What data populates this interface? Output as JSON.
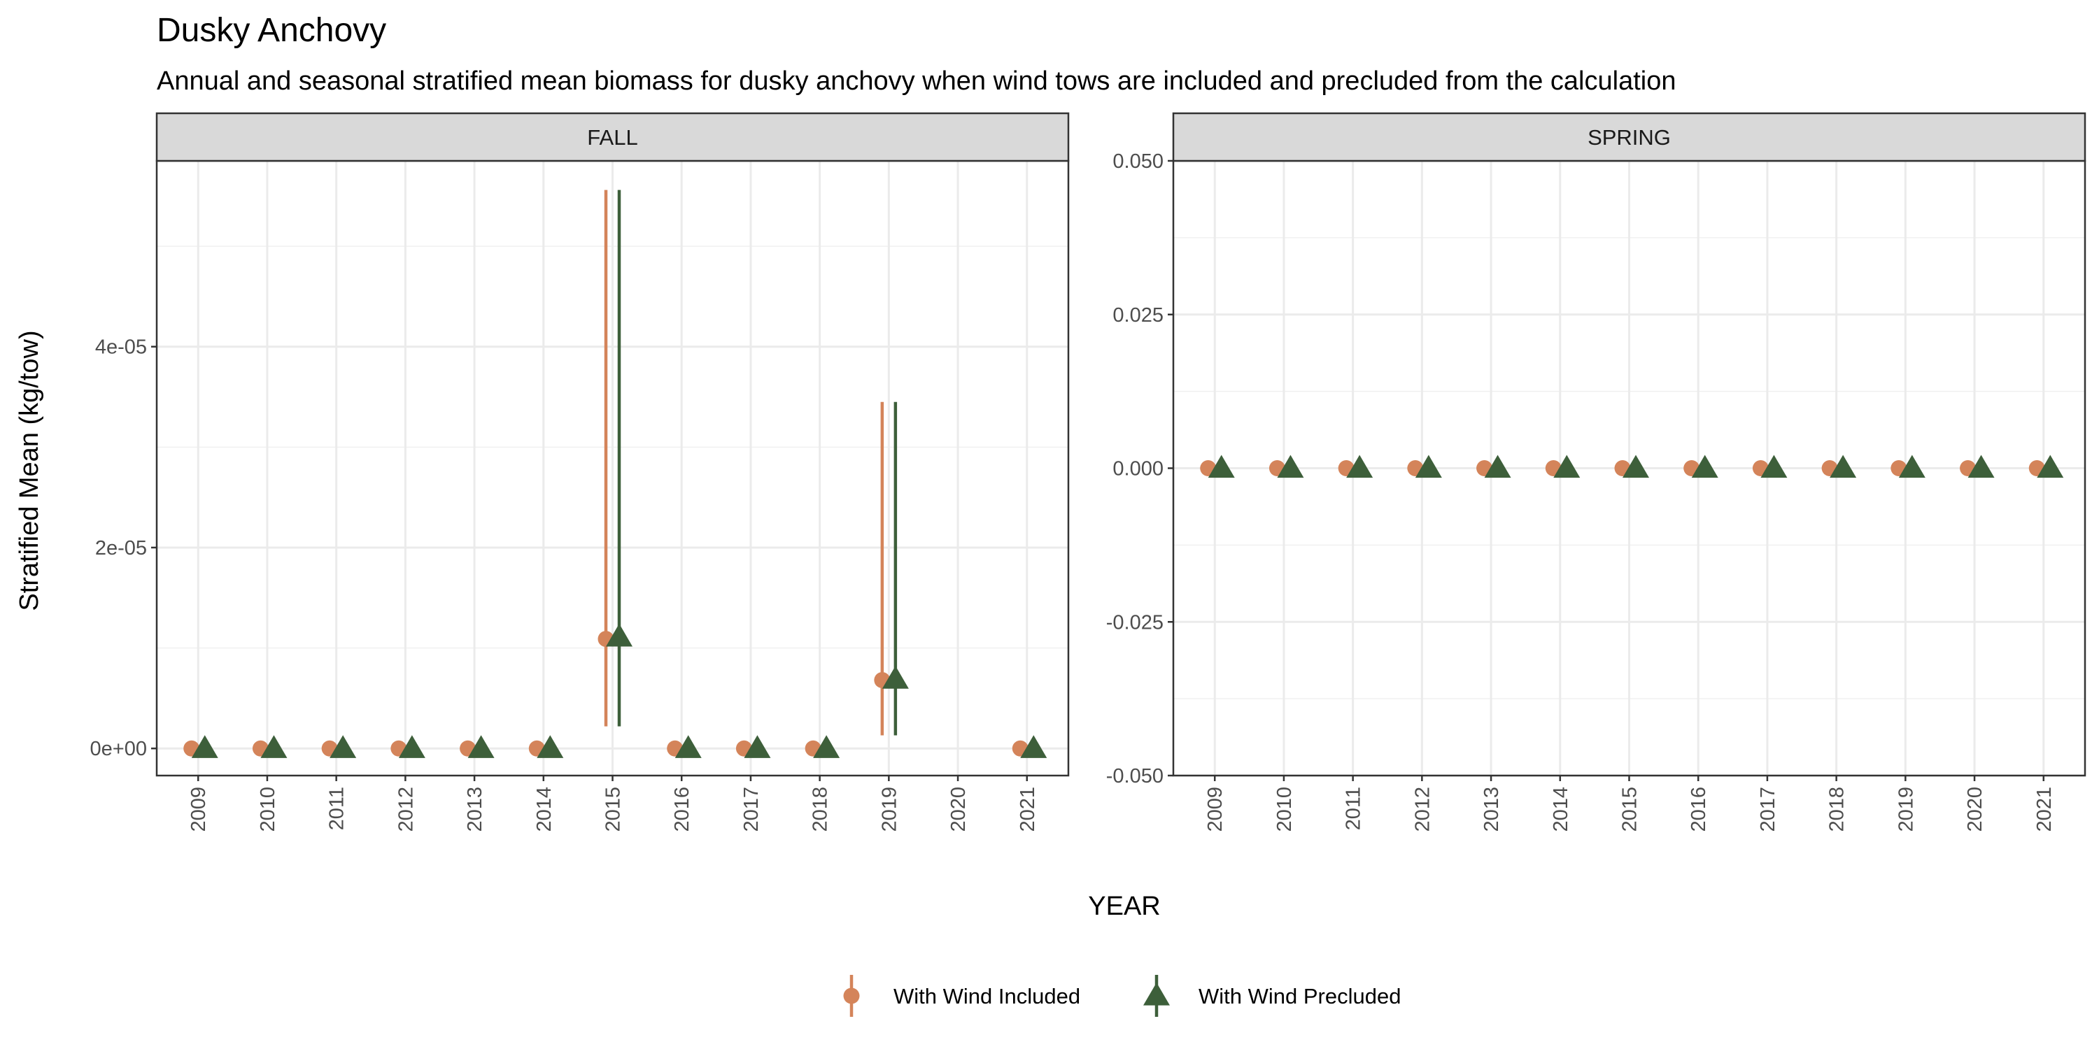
{
  "title": "Dusky Anchovy",
  "subtitle": "Annual and seasonal stratified mean biomass for dusky anchovy when wind tows are included and precluded from the calculation",
  "chart_data": {
    "type": "scatter",
    "xlabel": "YEAR",
    "ylabel": "Stratified Mean (kg/tow)",
    "categories": [
      "2009",
      "2010",
      "2011",
      "2012",
      "2013",
      "2014",
      "2015",
      "2016",
      "2017",
      "2018",
      "2019",
      "2020",
      "2021"
    ],
    "grid": true,
    "legend_position": "bottom",
    "legend": [
      {
        "name": "With Wind Included",
        "color": "#D4845A",
        "marker": "circle"
      },
      {
        "name": "With Wind Precluded",
        "color": "#3D5F3A",
        "marker": "triangle"
      }
    ],
    "panels": [
      {
        "strip": "FALL",
        "ylim": [
          -2.7e-06,
          5.85e-05
        ],
        "yticks": [
          0,
          2e-05,
          4e-05
        ],
        "ytick_labels": [
          "0e+00",
          "2e-05",
          "4e-05"
        ],
        "series": [
          {
            "name": "With Wind Included",
            "points": [
              {
                "x": "2009",
                "y": 0
              },
              {
                "x": "2010",
                "y": 0
              },
              {
                "x": "2011",
                "y": 0
              },
              {
                "x": "2012",
                "y": 0
              },
              {
                "x": "2013",
                "y": 0
              },
              {
                "x": "2014",
                "y": 0
              },
              {
                "x": "2015",
                "y": 1.09e-05,
                "lo": 2.2e-06,
                "hi": 5.56e-05
              },
              {
                "x": "2016",
                "y": 0
              },
              {
                "x": "2017",
                "y": 0
              },
              {
                "x": "2018",
                "y": 0
              },
              {
                "x": "2019",
                "y": 6.8e-06,
                "lo": 1.3e-06,
                "hi": 3.45e-05
              },
              {
                "x": "2021",
                "y": 0
              }
            ]
          },
          {
            "name": "With Wind Precluded",
            "points": [
              {
                "x": "2009",
                "y": 0
              },
              {
                "x": "2010",
                "y": 0
              },
              {
                "x": "2011",
                "y": 0
              },
              {
                "x": "2012",
                "y": 0
              },
              {
                "x": "2013",
                "y": 0
              },
              {
                "x": "2014",
                "y": 0
              },
              {
                "x": "2015",
                "y": 1.11e-05,
                "lo": 2.2e-06,
                "hi": 5.56e-05
              },
              {
                "x": "2016",
                "y": 0
              },
              {
                "x": "2017",
                "y": 0
              },
              {
                "x": "2018",
                "y": 0
              },
              {
                "x": "2019",
                "y": 6.9e-06,
                "lo": 1.3e-06,
                "hi": 3.45e-05
              },
              {
                "x": "2021",
                "y": 0
              }
            ]
          }
        ]
      },
      {
        "strip": "SPRING",
        "ylim": [
          -0.05,
          0.05
        ],
        "yticks": [
          -0.05,
          -0.025,
          0,
          0.025,
          0.05
        ],
        "ytick_labels": [
          "-0.050",
          "-0.025",
          "0.000",
          "0.025",
          "0.050"
        ],
        "series": [
          {
            "name": "With Wind Included",
            "points": [
              {
                "x": "2009",
                "y": 0
              },
              {
                "x": "2010",
                "y": 0
              },
              {
                "x": "2011",
                "y": 0
              },
              {
                "x": "2012",
                "y": 0
              },
              {
                "x": "2013",
                "y": 0
              },
              {
                "x": "2014",
                "y": 0
              },
              {
                "x": "2015",
                "y": 0
              },
              {
                "x": "2016",
                "y": 0
              },
              {
                "x": "2017",
                "y": 0
              },
              {
                "x": "2018",
                "y": 0
              },
              {
                "x": "2019",
                "y": 0
              },
              {
                "x": "2020",
                "y": 0
              },
              {
                "x": "2021",
                "y": 0
              }
            ]
          },
          {
            "name": "With Wind Precluded",
            "points": [
              {
                "x": "2009",
                "y": 0
              },
              {
                "x": "2010",
                "y": 0
              },
              {
                "x": "2011",
                "y": 0
              },
              {
                "x": "2012",
                "y": 0
              },
              {
                "x": "2013",
                "y": 0
              },
              {
                "x": "2014",
                "y": 0
              },
              {
                "x": "2015",
                "y": 0
              },
              {
                "x": "2016",
                "y": 0
              },
              {
                "x": "2017",
                "y": 0
              },
              {
                "x": "2018",
                "y": 0
              },
              {
                "x": "2019",
                "y": 0
              },
              {
                "x": "2020",
                "y": 0
              },
              {
                "x": "2021",
                "y": 0
              }
            ]
          }
        ]
      }
    ]
  }
}
